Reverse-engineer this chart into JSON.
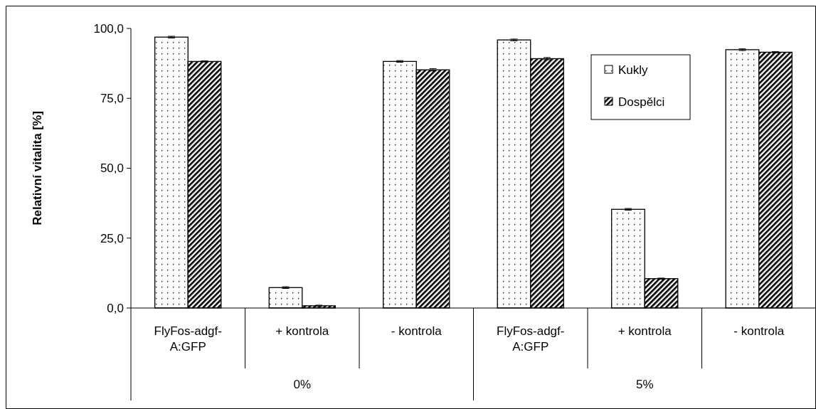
{
  "chart_data": {
    "type": "bar",
    "ylabel": "Relativní vitalita [%]",
    "categories": [
      "FlyFos-adgf-A:GFP",
      "+ kontrola",
      "- kontrola",
      "FlyFos-adgf-A:GFP",
      "+ kontrola",
      "- kontrola"
    ],
    "annotations": [
      "0%",
      "5%"
    ],
    "series": [
      {
        "name": "Kukly",
        "color": "#000000",
        "values": [
          96.9,
          7.3,
          88.2,
          95.9,
          35.3,
          92.4
        ],
        "errors": [
          0.3,
          0.3,
          0.3,
          0.3,
          0.3,
          0.3
        ]
      },
      {
        "name": "Dospělci",
        "color": "#000000",
        "values": [
          88.2,
          0.8,
          85.2,
          89.2,
          10.5,
          91.5
        ],
        "errors": [
          0.2,
          0.2,
          0.4,
          0.4,
          0.2,
          0.2
        ]
      }
    ],
    "ylim": [
      0,
      100
    ],
    "yticks": [
      {
        "value": 0,
        "label": "0,0"
      },
      {
        "value": 25,
        "label": "25,0"
      },
      {
        "value": 50,
        "label": "50,0"
      },
      {
        "value": 75,
        "label": "75,0"
      },
      {
        "value": 100,
        "label": "100,0"
      }
    ],
    "legend": "top right"
  }
}
